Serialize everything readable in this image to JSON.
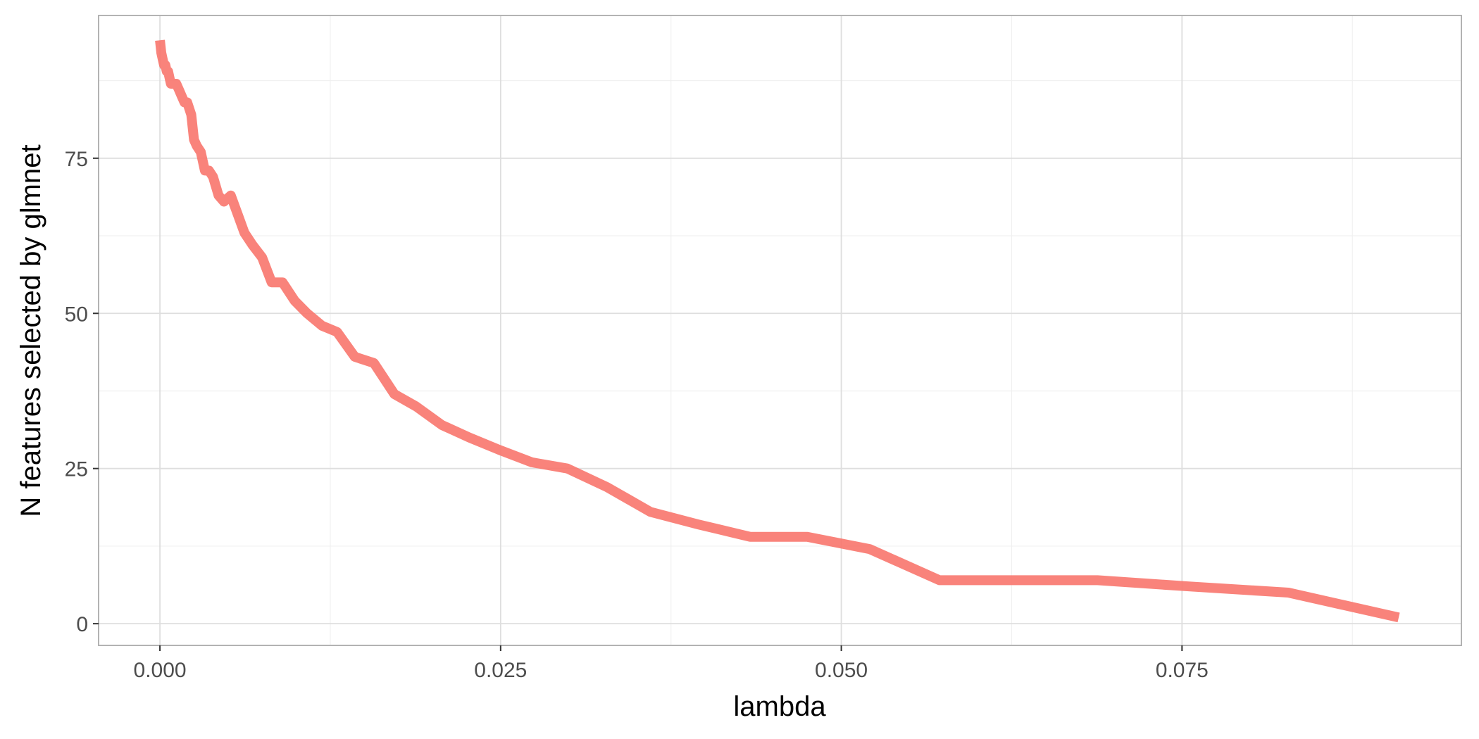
{
  "chart_data": {
    "type": "line",
    "title": "",
    "xlabel": "lambda",
    "ylabel": "N features selected by glmnet",
    "xlim": [
      -0.0045,
      0.0955
    ],
    "ylim": [
      -3.5,
      98
    ],
    "x_ticks": [
      0.0,
      0.025,
      0.05,
      0.075
    ],
    "x_tick_labels": [
      "0.000",
      "0.025",
      "0.050",
      "0.075"
    ],
    "y_ticks": [
      0,
      25,
      50,
      75
    ],
    "y_tick_labels": [
      "0",
      "25",
      "50",
      "75"
    ],
    "grid": true,
    "legend": "none",
    "line_color": "#F8766D",
    "series": [
      {
        "x": [
          0.0,
          0.0001,
          0.0002,
          0.0003,
          0.0004,
          0.0005,
          0.0006,
          0.0007,
          0.0008,
          0.0009,
          0.001,
          0.0012,
          0.0014,
          0.0016,
          0.0018,
          0.002,
          0.0023,
          0.0025,
          0.0027,
          0.003,
          0.0033,
          0.0036,
          0.0039,
          0.0043,
          0.0047,
          0.0052,
          0.0057,
          0.0062,
          0.0068,
          0.0075,
          0.0082,
          0.009,
          0.0099,
          0.0108,
          0.0119,
          0.013,
          0.0143,
          0.0157,
          0.0172,
          0.0188,
          0.0207,
          0.0227,
          0.0249,
          0.0273,
          0.0299,
          0.0328,
          0.036,
          0.0395,
          0.0433,
          0.0475,
          0.0521,
          0.0572,
          0.0627,
          0.0688,
          0.0755,
          0.0828,
          0.0909
        ],
        "y": [
          94,
          92,
          91,
          90,
          90,
          89,
          89,
          88,
          87,
          87,
          87,
          87,
          86,
          85,
          84,
          84,
          82,
          78,
          77,
          76,
          73,
          73,
          72,
          69,
          68,
          69,
          66,
          63,
          61,
          59,
          55,
          55,
          52,
          50,
          48,
          47,
          43,
          42,
          37,
          35,
          32,
          30,
          28,
          26,
          25,
          22,
          18,
          16,
          14,
          14,
          12,
          7,
          7,
          7,
          6,
          5,
          1
        ]
      }
    ]
  }
}
